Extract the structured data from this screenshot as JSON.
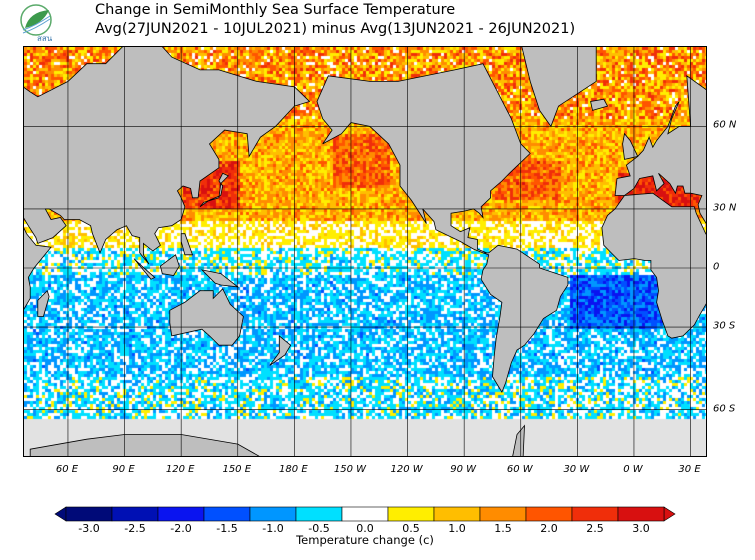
{
  "header": {
    "logo_text": "สสน",
    "title_line1": "Change in SemiMonthly Sea Surface Temperature",
    "title_line2": "Avg(27JUN2021 - 10JUL2021) minus Avg(13JUN2021 - 26JUN2021)"
  },
  "map": {
    "lon_labels": [
      "60 E",
      "90 E",
      "120 E",
      "150 E",
      "180 E",
      "150 W",
      "120 W",
      "90 W",
      "60 W",
      "30 W",
      "0 W",
      "30 E"
    ],
    "lat_labels": [
      "60 N",
      "30 N",
      "0",
      "30 S",
      "60 S"
    ],
    "land_color": "#bebebe",
    "nodata_color": "#e2e2e2"
  },
  "legend": {
    "title": "Temperature change  (c)",
    "labels": [
      "-3.0",
      "-2.5",
      "-2.0",
      "-1.5",
      "-1.0",
      "-0.5",
      "0.0",
      "0.5",
      "1.0",
      "1.5",
      "2.0",
      "2.5",
      "3.0"
    ],
    "values": [
      -3.0,
      -2.5,
      -2.0,
      -1.5,
      -1.0,
      -0.5,
      0.0,
      0.5,
      1.0,
      1.5,
      2.0,
      2.5,
      3.0
    ],
    "colors": [
      "#000a78",
      "#0010b4",
      "#0a14f0",
      "#0050ff",
      "#0096ff",
      "#00e0ff",
      "#ffffff",
      "#ffee00",
      "#ffbe00",
      "#ff8c00",
      "#ff5500",
      "#f02e0a",
      "#d81010"
    ]
  }
}
